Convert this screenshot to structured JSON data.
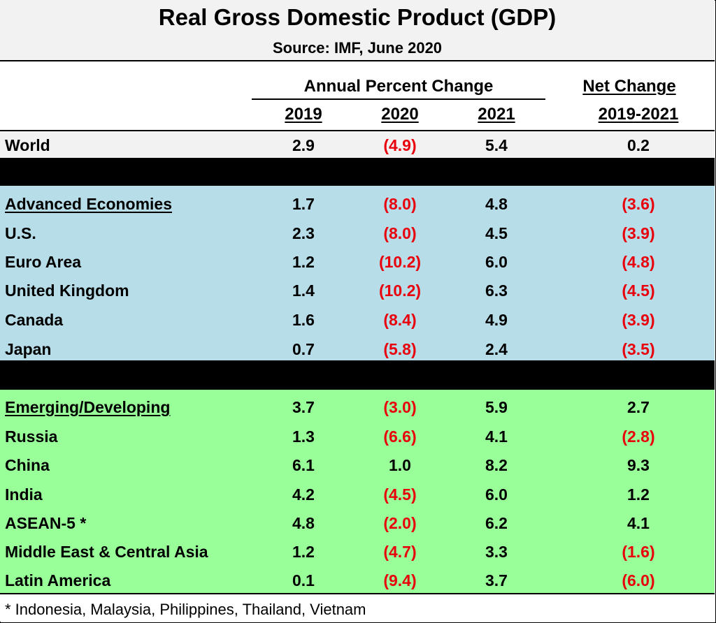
{
  "title": "Real Gross Domestic Product (GDP)",
  "source": "Source:  IMF, June 2020",
  "headers": {
    "annual_change": "Annual Percent Change",
    "net_change": "Net Change",
    "y2019": "2019",
    "y2020": "2020",
    "y2021": "2021",
    "net_period": "2019-2021"
  },
  "colors": {
    "world_band": "#f2f2f2",
    "advanced_band": "#b7dde8",
    "emerging_band": "#99ff99",
    "separator": "#000000",
    "negative_text": "#e8000d"
  },
  "chart_data": {
    "type": "table",
    "columns": [
      "",
      "2019",
      "2020",
      "2021",
      "2019-2021"
    ],
    "groups": [
      {
        "band": "world",
        "rows": [
          {
            "label": "World",
            "header": false,
            "y2019": "2.9",
            "y2020": "(4.9)",
            "y2021": "5.4",
            "net": "0.2"
          }
        ]
      },
      {
        "band": "advanced",
        "rows": [
          {
            "label": "Advanced Economies",
            "header": true,
            "y2019": "1.7",
            "y2020": "(8.0)",
            "y2021": "4.8",
            "net": "(3.6)"
          },
          {
            "label": "U.S.",
            "header": false,
            "y2019": "2.3",
            "y2020": "(8.0)",
            "y2021": "4.5",
            "net": "(3.9)"
          },
          {
            "label": "Euro Area",
            "header": false,
            "y2019": "1.2",
            "y2020": "(10.2)",
            "y2021": "6.0",
            "net": "(4.8)"
          },
          {
            "label": "United Kingdom",
            "header": false,
            "y2019": "1.4",
            "y2020": "(10.2)",
            "y2021": "6.3",
            "net": "(4.5)"
          },
          {
            "label": "Canada",
            "header": false,
            "y2019": "1.6",
            "y2020": "(8.4)",
            "y2021": "4.9",
            "net": "(3.9)"
          },
          {
            "label": "Japan",
            "header": false,
            "y2019": "0.7",
            "y2020": "(5.8)",
            "y2021": "2.4",
            "net": "(3.5)"
          }
        ]
      },
      {
        "band": "emerging",
        "rows": [
          {
            "label": "Emerging/Developing",
            "header": true,
            "y2019": "3.7",
            "y2020": "(3.0)",
            "y2021": "5.9",
            "net": "2.7"
          },
          {
            "label": "Russia",
            "header": false,
            "y2019": "1.3",
            "y2020": "(6.6)",
            "y2021": "4.1",
            "net": "(2.8)"
          },
          {
            "label": "China",
            "header": false,
            "y2019": "6.1",
            "y2020": "1.0",
            "y2021": "8.2",
            "net": "9.3"
          },
          {
            "label": "India",
            "header": false,
            "y2019": "4.2",
            "y2020": "(4.5)",
            "y2021": "6.0",
            "net": "1.2"
          },
          {
            "label": "ASEAN-5 *",
            "header": false,
            "y2019": "4.8",
            "y2020": "(2.0)",
            "y2021": "6.2",
            "net": "4.1"
          },
          {
            "label": "Middle East & Central Asia",
            "header": false,
            "y2019": "1.2",
            "y2020": "(4.7)",
            "y2021": "3.3",
            "net": "(1.6)"
          },
          {
            "label": "Latin America",
            "header": false,
            "y2019": "0.1",
            "y2020": "(9.4)",
            "y2021": "3.7",
            "net": "(6.0)"
          }
        ]
      }
    ]
  },
  "footnote": "* Indonesia, Malaysia, Philippines, Thailand, Vietnam"
}
